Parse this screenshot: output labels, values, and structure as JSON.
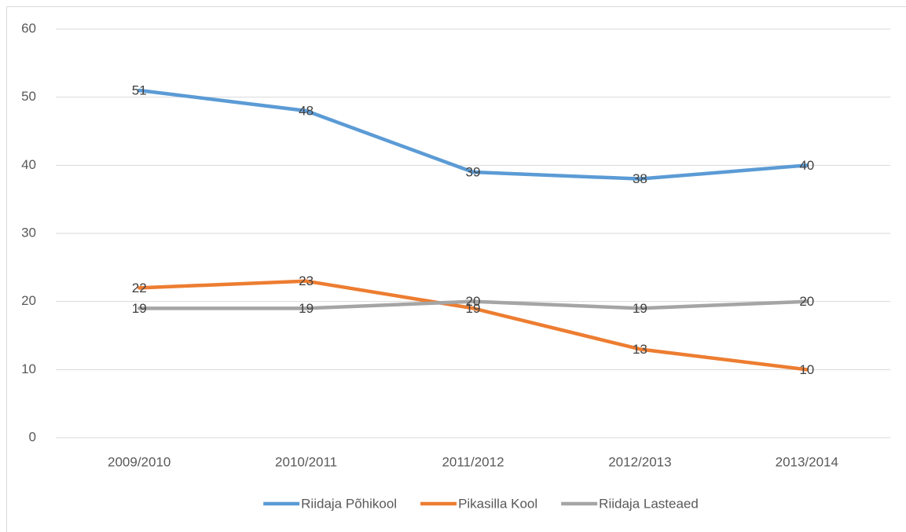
{
  "chart_data": {
    "type": "line",
    "categories": [
      "2009/2010",
      "2010/2011",
      "2011/2012",
      "2012/2013",
      "2013/2014"
    ],
    "series": [
      {
        "name": "Riidaja Põhikool",
        "color": "#5b9bd5",
        "values": [
          51,
          48,
          39,
          38,
          40
        ]
      },
      {
        "name": "Pikasilla Kool",
        "color": "#ed7d31",
        "values": [
          22,
          23,
          19,
          13,
          10
        ]
      },
      {
        "name": "Riidaja Lasteaed",
        "color": "#a5a5a5",
        "values": [
          19,
          19,
          20,
          19,
          20
        ]
      }
    ],
    "ylim": [
      0,
      60
    ],
    "yticks": [
      0,
      10,
      20,
      30,
      40,
      50,
      60
    ],
    "grid": true,
    "legend": "bottom"
  }
}
